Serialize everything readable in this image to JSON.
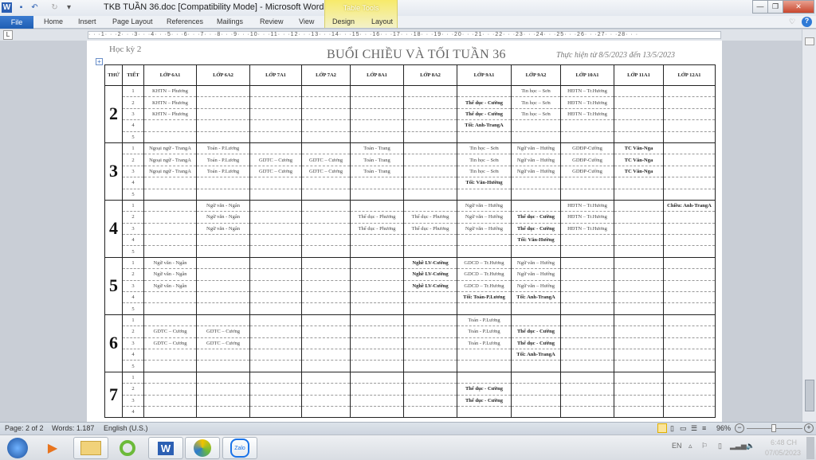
{
  "window": {
    "title": "TKB TUẦN 36.doc [Compatibility Mode]  -  Microsoft Word",
    "contextual_group": "Table Tools",
    "minimize": "—",
    "restore": "❐",
    "close": "✕"
  },
  "ribbon": {
    "file": "File",
    "tabs": [
      "Home",
      "Insert",
      "Page Layout",
      "References",
      "Mailings",
      "Review",
      "View",
      "Design",
      "Layout"
    ]
  },
  "ruler": {
    "labels": "· · ·1· · ·2· · ·3· · ·4· · ·5· · ·6· · ·7· · ·8· · ·9· · ·10· · ·11· · ·12· · ·13· · ·14· · ·15· · ·16· · ·17· · ·18· · ·19· · ·20· · ·21· · ·22· · ·23· · ·24· · ·25· · ·26· · ·27· · ·28· · ·"
  },
  "document": {
    "semester": "Học kỳ 2",
    "title": "BUỔI CHIỀU VÀ TỐI TUẦN 36",
    "date_range": "Thực hiện từ 8/5/2023 đến 13/5/2023",
    "headers": [
      "THỨ",
      "TIẾT",
      "LỚP 6A1",
      "LỚP 6A2",
      "LỚP 7A1",
      "LỚP 7A2",
      "LỚP 8A1",
      "LỚP 8A2",
      "LỚP 9A1",
      "LỚP 9A2",
      "LỚP 10A1",
      "LỚP 11A1",
      "LỚP 12A1"
    ],
    "days": [
      {
        "day": "2",
        "rows": [
          {
            "tiet": "1",
            "cells": [
              "KHTN – Phương",
              "",
              "",
              "",
              "",
              "",
              "",
              "Tin học – Sơn",
              "HĐTN – Tr.Hương",
              "",
              ""
            ]
          },
          {
            "tiet": "2",
            "cells": [
              "KHTN – Phương",
              "",
              "",
              "",
              "",
              "",
              {
                "text": "Thể dục - Cường",
                "bold": true
              },
              "Tin học – Sơn",
              "HĐTN – Tr.Hương",
              "",
              ""
            ]
          },
          {
            "tiet": "3",
            "cells": [
              "KHTN – Phương",
              "",
              "",
              "",
              "",
              "",
              {
                "text": "Thể dục - Cường",
                "bold": true
              },
              "Tin học – Sơn",
              "HĐTN – Tr.Hương",
              "",
              ""
            ]
          },
          {
            "tiet": "4",
            "cells": [
              "",
              "",
              "",
              "",
              "",
              "",
              {
                "text": "Tối: Anh-TrangA",
                "bold": true
              },
              "",
              "",
              "",
              ""
            ]
          },
          {
            "tiet": "5",
            "cells": [
              "",
              "",
              "",
              "",
              "",
              "",
              "",
              "",
              "",
              "",
              ""
            ]
          }
        ]
      },
      {
        "day": "3",
        "rows": [
          {
            "tiet": "1",
            "cells": [
              "Ngoại ngữ - TrangA",
              "Toán - P.Lương",
              "",
              "",
              "Toán - Trang",
              "",
              "Tin học – Sơn",
              "Ngữ văn – Hướng",
              "GDĐP-Cường",
              {
                "text": "TC Văn-Nga",
                "bold": true
              },
              ""
            ]
          },
          {
            "tiet": "2",
            "cells": [
              "Ngoại ngữ - TrangA",
              "Toán - P.Lương",
              "GDTC – Cương",
              "GDTC – Cương",
              "Toán - Trang",
              "",
              "Tin học – Sơn",
              "Ngữ văn – Hướng",
              "GDĐP-Cường",
              {
                "text": "TC Văn-Nga",
                "bold": true
              },
              ""
            ]
          },
          {
            "tiet": "3",
            "cells": [
              "Ngoại ngữ - TrangA",
              "Toán - P.Lương",
              "GDTC – Cương",
              "GDTC – Cương",
              "Toán - Trang",
              "",
              "Tin học – Sơn",
              "Ngữ văn – Hướng",
              "GDĐP-Cường",
              {
                "text": "TC Văn-Nga",
                "bold": true
              },
              ""
            ]
          },
          {
            "tiet": "4",
            "cells": [
              "",
              "",
              "",
              "",
              "",
              "",
              {
                "text": "Tối: Văn-Hường",
                "bold": true
              },
              "",
              "",
              "",
              ""
            ]
          },
          {
            "tiet": "5",
            "cells": [
              "",
              "",
              "",
              "",
              "",
              "",
              "",
              "",
              "",
              "",
              ""
            ]
          }
        ]
      },
      {
        "day": "4",
        "rows": [
          {
            "tiet": "1",
            "cells": [
              "",
              "Ngữ văn - Ngân",
              "",
              "",
              "",
              "",
              "Ngữ văn – Hướng",
              "",
              "HĐTN – Tr.Hương",
              "",
              {
                "text": "Chiều: Anh-TrangA",
                "bold": true
              }
            ]
          },
          {
            "tiet": "2",
            "cells": [
              "",
              "Ngữ văn - Ngân",
              "",
              "",
              "Thể dục - Phương",
              "Thể dục - Phương",
              "Ngữ văn – Hướng",
              {
                "text": "Thể dục - Cường",
                "bold": true
              },
              "HĐTN – Tr.Hương",
              "",
              ""
            ]
          },
          {
            "tiet": "3",
            "cells": [
              "",
              "Ngữ văn - Ngân",
              "",
              "",
              "Thể dục - Phương",
              "Thể dục - Phương",
              "Ngữ văn – Hướng",
              {
                "text": "Thể dục - Cường",
                "bold": true
              },
              "HĐTN – Tr.Hương",
              "",
              ""
            ]
          },
          {
            "tiet": "4",
            "cells": [
              "",
              "",
              "",
              "",
              "",
              "",
              "",
              {
                "text": "Tối: Văn-Hường",
                "bold": true
              },
              "",
              "",
              ""
            ]
          },
          {
            "tiet": "5",
            "cells": [
              "",
              "",
              "",
              "",
              "",
              "",
              "",
              "",
              "",
              "",
              ""
            ]
          }
        ]
      },
      {
        "day": "5",
        "rows": [
          {
            "tiet": "1",
            "cells": [
              "Ngữ văn - Ngân",
              "",
              "",
              "",
              "",
              {
                "text": "Nghề LV-Cường",
                "bold": true
              },
              "GDCD – Tr.Hương",
              "Ngữ văn – Hướng",
              "",
              "",
              ""
            ]
          },
          {
            "tiet": "2",
            "cells": [
              "Ngữ văn - Ngân",
              "",
              "",
              "",
              "",
              {
                "text": "Nghề LV-Cường",
                "bold": true
              },
              "GDCD – Tr.Hương",
              "Ngữ văn – Hướng",
              "",
              "",
              ""
            ]
          },
          {
            "tiet": "3",
            "cells": [
              "Ngữ văn - Ngân",
              "",
              "",
              "",
              "",
              {
                "text": "Nghề LV-Cường",
                "bold": true
              },
              "GDCD – Tr.Hương",
              "Ngữ văn – Hướng",
              "",
              "",
              ""
            ]
          },
          {
            "tiet": "4",
            "cells": [
              "",
              "",
              "",
              "",
              "",
              "",
              {
                "text": "Tối: Toán-P.Lương",
                "bold": true
              },
              {
                "text": "Tối: Anh-TrangA",
                "bold": true
              },
              "",
              "",
              ""
            ]
          },
          {
            "tiet": "5",
            "cells": [
              "",
              "",
              "",
              "",
              "",
              "",
              "",
              "",
              "",
              "",
              ""
            ]
          }
        ]
      },
      {
        "day": "6",
        "rows": [
          {
            "tiet": "1",
            "cells": [
              "",
              "",
              "",
              "",
              "",
              "",
              "Toán - P.Lương",
              "",
              "",
              "",
              ""
            ]
          },
          {
            "tiet": "2",
            "cells": [
              "GDTC – Cương",
              "GDTC – Cương",
              "",
              "",
              "",
              "",
              "Toán - P.Lương",
              {
                "text": "Thể dục - Cường",
                "bold": true
              },
              "",
              "",
              ""
            ]
          },
          {
            "tiet": "3",
            "cells": [
              "GDTC – Cương",
              "GDTC – Cương",
              "",
              "",
              "",
              "",
              "Toán - P.Lương",
              {
                "text": "Thể dục - Cường",
                "bold": true
              },
              "",
              "",
              ""
            ]
          },
          {
            "tiet": "4",
            "cells": [
              "",
              "",
              "",
              "",
              "",
              "",
              "",
              {
                "text": "Tối: Anh-TrangA",
                "bold": true
              },
              "",
              "",
              ""
            ]
          },
          {
            "tiet": "5",
            "cells": [
              "",
              "",
              "",
              "",
              "",
              "",
              "",
              "",
              "",
              "",
              ""
            ]
          }
        ]
      },
      {
        "day": "7",
        "rows": [
          {
            "tiet": "1",
            "cells": [
              "",
              "",
              "",
              "",
              "",
              "",
              "",
              "",
              "",
              "",
              ""
            ]
          },
          {
            "tiet": "2",
            "cells": [
              "",
              "",
              "",
              "",
              "",
              "",
              {
                "text": "Thể dục - Cường",
                "bold": true
              },
              "",
              "",
              "",
              ""
            ]
          },
          {
            "tiet": "3",
            "cells": [
              "",
              "",
              "",
              "",
              "",
              "",
              {
                "text": "Thể dục - Cường",
                "bold": true
              },
              "",
              "",
              "",
              ""
            ]
          },
          {
            "tiet": "4",
            "cells": [
              "",
              "",
              "",
              "",
              "",
              "",
              "",
              "",
              "",
              "",
              ""
            ]
          }
        ]
      }
    ]
  },
  "statusbar": {
    "page": "Page: 2 of 2",
    "words": "Words: 1.187",
    "language": "English (U.S.)",
    "zoom": "96%",
    "zoom_percent": 96
  },
  "taskbar": {
    "apps": [
      "start",
      "media-player",
      "file-explorer",
      "coc-coc-browser",
      "microsoft-word",
      "school-app",
      "zalo"
    ],
    "zalo_label": "Zalo",
    "lang": "EN",
    "time": "6:48 CH",
    "date": "07/05/2023"
  }
}
